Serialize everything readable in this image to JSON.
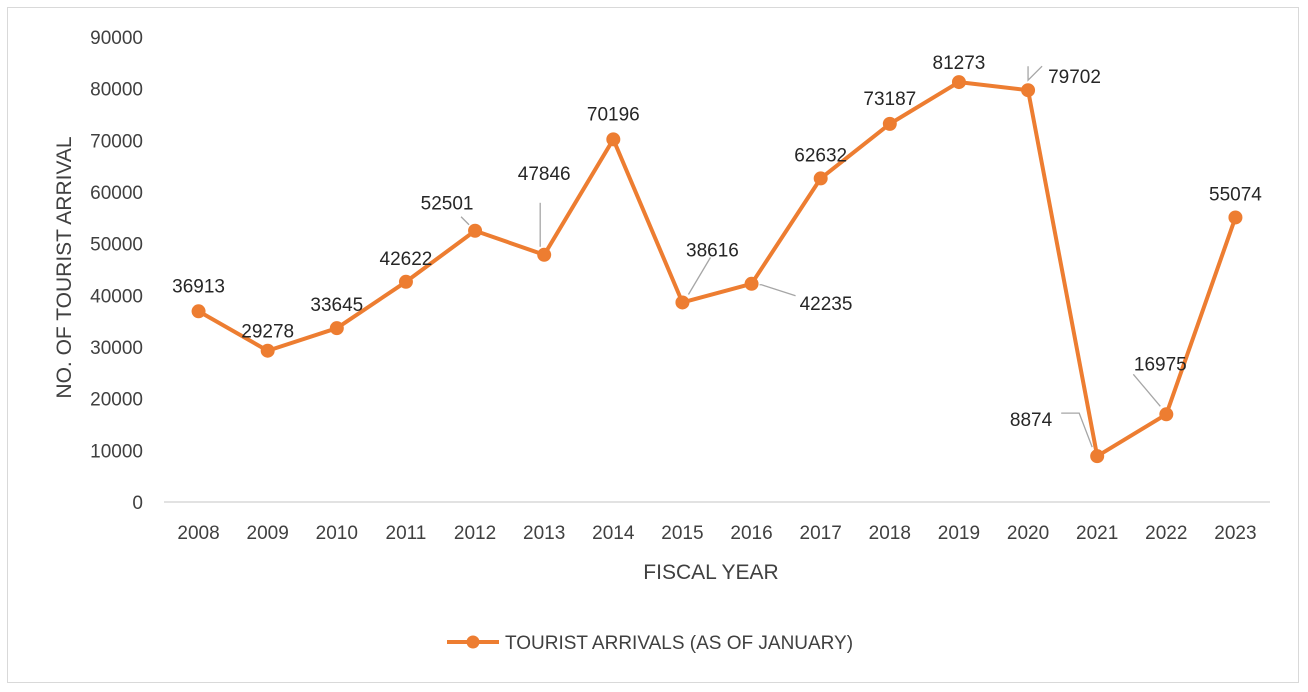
{
  "chart_data": {
    "type": "line",
    "title": "",
    "xlabel": "FISCAL YEAR",
    "ylabel": "NO. OF TOURIST ARRIVAL",
    "ylim": [
      0,
      90000
    ],
    "yticks": [
      0,
      10000,
      20000,
      30000,
      40000,
      50000,
      60000,
      70000,
      80000,
      90000
    ],
    "categories": [
      "2008",
      "2009",
      "2010",
      "2011",
      "2012",
      "2013",
      "2014",
      "2015",
      "2016",
      "2017",
      "2018",
      "2019",
      "2020",
      "2021",
      "2022",
      "2023"
    ],
    "series": [
      {
        "name": "TOURIST ARRIVALS (AS OF JANUARY)",
        "values": [
          36913,
          29278,
          33645,
          42622,
          52501,
          47846,
          70196,
          38616,
          42235,
          62632,
          73187,
          81273,
          79702,
          8874,
          16975,
          55074
        ],
        "color": "#ed7d31"
      }
    ],
    "grid": false,
    "legend": "bottom"
  }
}
